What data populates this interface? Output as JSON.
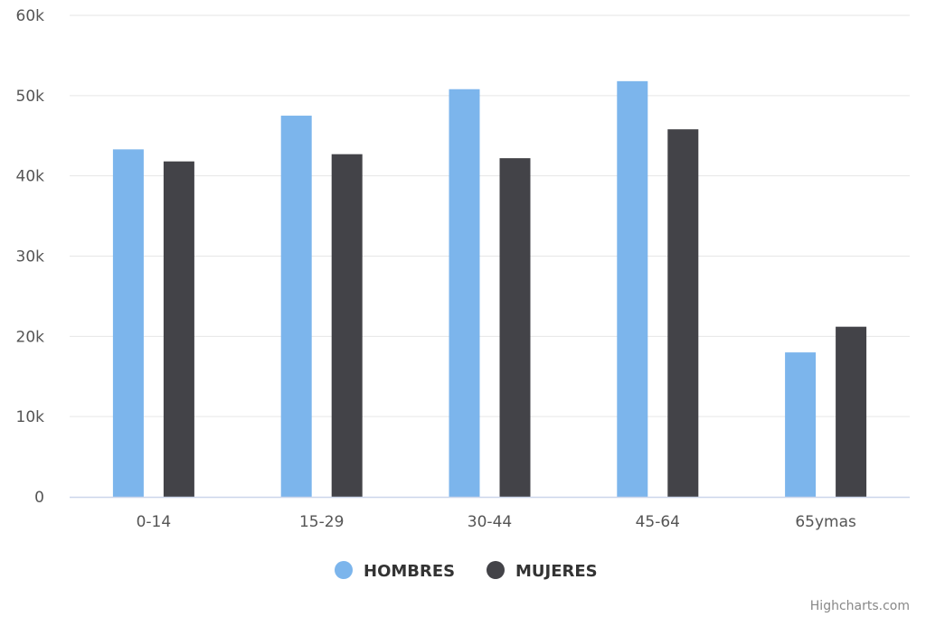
{
  "chart_data": {
    "type": "bar",
    "categories": [
      "0-14",
      "15-29",
      "30-44",
      "45-64",
      "65ymas"
    ],
    "series": [
      {
        "name": "HOMBRES",
        "color": "#7cb5ec",
        "values": [
          43300,
          47500,
          50800,
          51800,
          18000
        ]
      },
      {
        "name": "MUJERES",
        "color": "#434348",
        "values": [
          41800,
          42700,
          42200,
          45800,
          21200
        ]
      }
    ],
    "ylim": [
      0,
      60000
    ],
    "yticks": [
      0,
      10000,
      20000,
      30000,
      40000,
      50000,
      60000
    ],
    "ytick_labels": [
      "0",
      "10k",
      "20k",
      "30k",
      "40k",
      "50k",
      "60k"
    ],
    "grid": true,
    "legend_position": "bottom-center"
  },
  "credits": {
    "text": "Highcharts.com"
  },
  "colors": {
    "grid": "#e6e6e6",
    "axis_line": "#ccd6eb"
  }
}
